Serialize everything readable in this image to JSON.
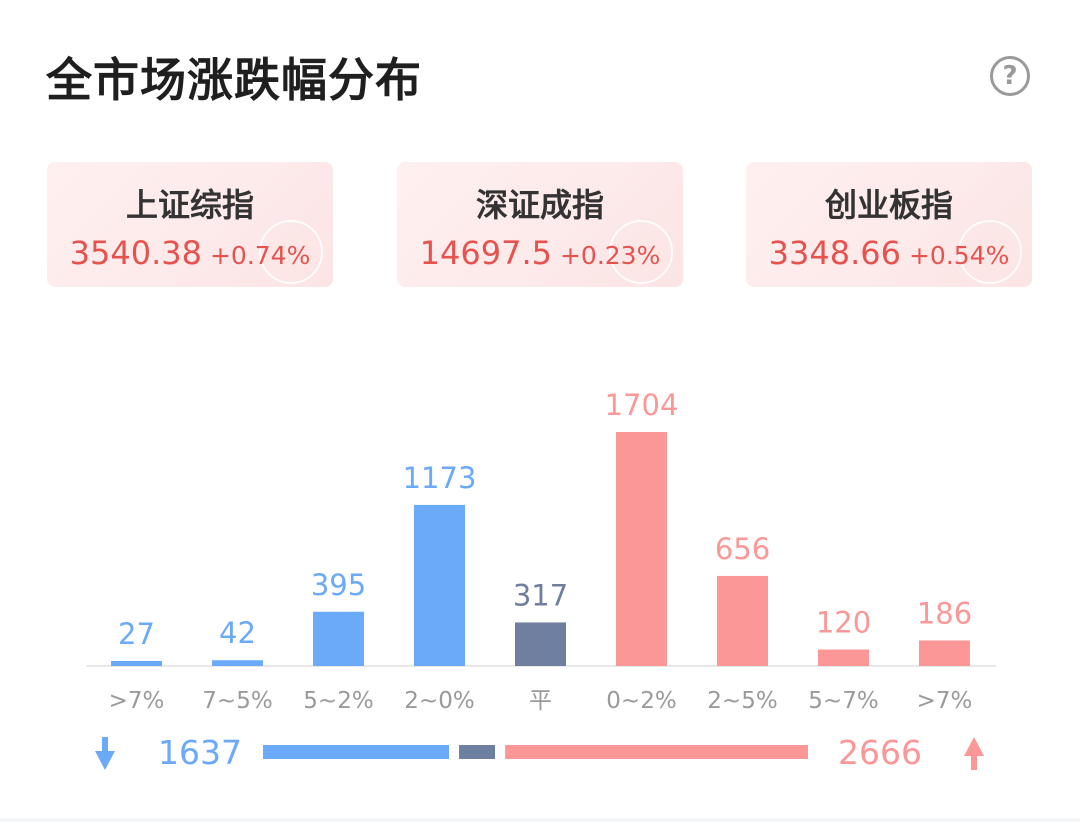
{
  "header": {
    "title": "全市场涨跌幅分布",
    "help_icon": "?"
  },
  "indices": [
    {
      "name": "上证综指",
      "value": "3540.38",
      "change": "+0.74%"
    },
    {
      "name": "深证成指",
      "value": "14697.5",
      "change": "+0.23%"
    },
    {
      "name": "创业板指",
      "value": "3348.66",
      "change": "+0.54%"
    }
  ],
  "colors": {
    "down": "#6aaaf9",
    "flat": "#6f7f9f",
    "up": "#fc9797",
    "label": "#9a9a9a"
  },
  "chart_data": {
    "type": "bar",
    "categories": [
      ">7%",
      "7~5%",
      "5~2%",
      "2~0%",
      "平",
      "0~2%",
      "2~5%",
      "5~7%",
      ">7%"
    ],
    "values": [
      27,
      42,
      395,
      1173,
      317,
      1704,
      656,
      120,
      186
    ],
    "groups": [
      "down",
      "down",
      "down",
      "down",
      "flat",
      "up",
      "up",
      "up",
      "up"
    ],
    "summary": {
      "down_total": "1637",
      "up_total": "2666"
    }
  }
}
